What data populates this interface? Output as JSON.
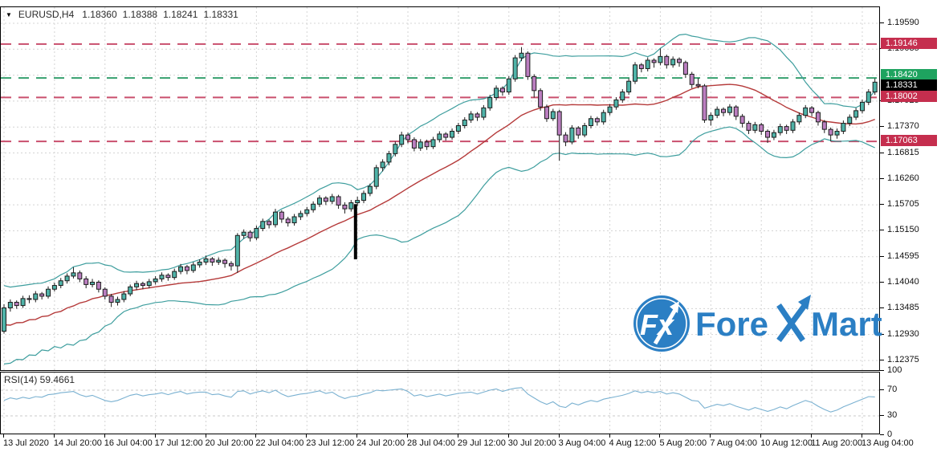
{
  "header": {
    "dropdown_icon": "▼",
    "symbol": "EURUSD,H4",
    "open": "1.18360",
    "high": "1.18388",
    "low": "1.18241",
    "close": "1.18331"
  },
  "rsi_label": "RSI(14) 59.4661",
  "logo": {
    "fx": "Fx",
    "fore": "Fore",
    "mart": "Mart"
  },
  "colors": {
    "bull": "#4fb3a8",
    "bear": "#bb7ec0",
    "candle_border": "#1c1c1c",
    "band": "#3e9e9e",
    "ma": "#b53a3a",
    "level_red": "#c94f6d",
    "badge_red": "#c52e4e",
    "level_green": "#36a06e",
    "badge_green": "#1ea35f",
    "badge_black": "#000000",
    "rsi_line": "#7ab1d1",
    "grid": "#d4d4d4",
    "logo_blue": "#2b7fc4",
    "annotation": "#000000"
  },
  "price_axis": {
    "labels": [
      {
        "text": "1.19590",
        "value": 1.1959
      },
      {
        "text": "1.19035",
        "value": 1.19035
      },
      {
        "text": "1.17925",
        "value": 1.17925
      },
      {
        "text": "1.17370",
        "value": 1.1737
      },
      {
        "text": "1.16815",
        "value": 1.16815
      },
      {
        "text": "1.16260",
        "value": 1.1626
      },
      {
        "text": "1.15705",
        "value": 1.15705
      },
      {
        "text": "1.15150",
        "value": 1.1515
      },
      {
        "text": "1.14595",
        "value": 1.14595
      },
      {
        "text": "1.14040",
        "value": 1.1404
      },
      {
        "text": "1.13485",
        "value": 1.13485
      },
      {
        "text": "1.12930",
        "value": 1.1293
      },
      {
        "text": "1.12375",
        "value": 1.12375
      }
    ],
    "grid_values": [
      1.1959,
      1.19035,
      1.1848,
      1.17925,
      1.1737,
      1.16815,
      1.1626,
      1.15705,
      1.1515,
      1.14595,
      1.1404,
      1.13485,
      1.1293,
      1.12375
    ],
    "badges": [
      {
        "text": "1.19146",
        "value": 1.19146,
        "type": "red",
        "dy": 0
      },
      {
        "text": "1.18420",
        "value": 1.1842,
        "type": "green",
        "dy": -3
      },
      {
        "text": "1.18331",
        "value": 1.18331,
        "type": "black",
        "dy": 5
      },
      {
        "text": "1.18002",
        "value": 1.18002,
        "type": "red",
        "dy": 0
      },
      {
        "text": "1.17063",
        "value": 1.17063,
        "type": "red",
        "dy": 0
      }
    ]
  },
  "rsi_axis": {
    "labels": [
      {
        "text": "100",
        "value": 100
      },
      {
        "text": "70",
        "value": 70
      },
      {
        "text": "30",
        "value": 30
      },
      {
        "text": "0",
        "value": 0
      }
    ],
    "dashed_levels": [
      70,
      30
    ]
  },
  "chart_data": {
    "type": "candlestick",
    "symbol": "EURUSD",
    "timeframe": "H4",
    "x_labels": [
      "13 Jul 2020",
      "14 Jul 20:00",
      "16 Jul 04:00",
      "17 Jul 12:00",
      "20 Jul 20:00",
      "22 Jul 04:00",
      "23 Jul 12:00",
      "24 Jul 20:00",
      "28 Jul 04:00",
      "29 Jul 12:00",
      "30 Jul 20:00",
      "3 Aug 04:00",
      "4 Aug 12:00",
      "5 Aug 20:00",
      "7 Aug 04:00",
      "10 Aug 12:00",
      "11 Aug 20:00",
      "13 Aug 04:00"
    ],
    "candles_per_label": 8,
    "y_range": [
      1.12375,
      1.1959
    ],
    "levels": [
      {
        "price": 1.19146,
        "style": "red"
      },
      {
        "price": 1.1842,
        "style": "green"
      },
      {
        "price": 1.18002,
        "style": "red"
      },
      {
        "price": 1.17063,
        "style": "red"
      }
    ],
    "current_price": 1.18331,
    "candles": [
      [
        1.13,
        1.1358,
        1.1295,
        1.135
      ],
      [
        1.135,
        1.1368,
        1.1342,
        1.1362
      ],
      [
        1.1362,
        1.1366,
        1.1348,
        1.1355
      ],
      [
        1.1355,
        1.1376,
        1.135,
        1.137
      ],
      [
        1.137,
        1.1377,
        1.136,
        1.1368
      ],
      [
        1.1368,
        1.1386,
        1.1362,
        1.138
      ],
      [
        1.138,
        1.1384,
        1.1368,
        1.1375
      ],
      [
        1.1375,
        1.1396,
        1.137,
        1.139
      ],
      [
        1.139,
        1.1404,
        1.1385,
        1.1398
      ],
      [
        1.1398,
        1.1414,
        1.1392,
        1.1408
      ],
      [
        1.1408,
        1.1424,
        1.1402,
        1.1418
      ],
      [
        1.1418,
        1.1437,
        1.1413,
        1.1425
      ],
      [
        1.1425,
        1.143,
        1.1405,
        1.1412
      ],
      [
        1.1412,
        1.1418,
        1.1392,
        1.14
      ],
      [
        1.14,
        1.1412,
        1.1394,
        1.1405
      ],
      [
        1.1405,
        1.1409,
        1.1383,
        1.139
      ],
      [
        1.139,
        1.1394,
        1.1368,
        1.1375
      ],
      [
        1.1375,
        1.138,
        1.1352,
        1.1362
      ],
      [
        1.1362,
        1.1374,
        1.1355,
        1.1368
      ],
      [
        1.1368,
        1.1386,
        1.1362,
        1.138
      ],
      [
        1.138,
        1.14,
        1.1375,
        1.1395
      ],
      [
        1.1395,
        1.1408,
        1.1388,
        1.1402
      ],
      [
        1.1402,
        1.1406,
        1.139,
        1.1398
      ],
      [
        1.1398,
        1.1412,
        1.1392,
        1.1406
      ],
      [
        1.1406,
        1.1418,
        1.14,
        1.1412
      ],
      [
        1.1412,
        1.1426,
        1.1406,
        1.142
      ],
      [
        1.142,
        1.1424,
        1.1408,
        1.1415
      ],
      [
        1.1415,
        1.1434,
        1.141,
        1.1428
      ],
      [
        1.1428,
        1.1444,
        1.1422,
        1.1438
      ],
      [
        1.1438,
        1.1442,
        1.1422,
        1.143
      ],
      [
        1.143,
        1.1448,
        1.1425,
        1.1442
      ],
      [
        1.1442,
        1.1454,
        1.1436,
        1.1448
      ],
      [
        1.1448,
        1.1462,
        1.1442,
        1.1455
      ],
      [
        1.1455,
        1.1459,
        1.144,
        1.1448
      ],
      [
        1.1448,
        1.1458,
        1.1442,
        1.1452
      ],
      [
        1.1452,
        1.1456,
        1.1436,
        1.1445
      ],
      [
        1.1445,
        1.145,
        1.143,
        1.144
      ],
      [
        1.144,
        1.151,
        1.1425,
        1.1505
      ],
      [
        1.1505,
        1.1518,
        1.1498,
        1.1512
      ],
      [
        1.1512,
        1.1516,
        1.1492,
        1.15
      ],
      [
        1.15,
        1.1526,
        1.1495,
        1.152
      ],
      [
        1.152,
        1.1541,
        1.1514,
        1.1535
      ],
      [
        1.1535,
        1.1539,
        1.152,
        1.1528
      ],
      [
        1.1528,
        1.1562,
        1.1522,
        1.1555
      ],
      [
        1.1555,
        1.1559,
        1.1532,
        1.154
      ],
      [
        1.154,
        1.1545,
        1.1524,
        1.1532
      ],
      [
        1.1532,
        1.1551,
        1.1526,
        1.1545
      ],
      [
        1.1545,
        1.1558,
        1.1538,
        1.1552
      ],
      [
        1.1552,
        1.1566,
        1.1546,
        1.156
      ],
      [
        1.156,
        1.1578,
        1.1554,
        1.1572
      ],
      [
        1.1572,
        1.1591,
        1.1566,
        1.1585
      ],
      [
        1.1585,
        1.1589,
        1.157,
        1.1578
      ],
      [
        1.1578,
        1.1594,
        1.1572,
        1.1588
      ],
      [
        1.1588,
        1.1592,
        1.1562,
        1.157
      ],
      [
        1.157,
        1.1576,
        1.1552,
        1.1562
      ],
      [
        1.1562,
        1.1581,
        1.1556,
        1.1575
      ],
      [
        1.1575,
        1.1588,
        1.1568,
        1.158
      ],
      [
        1.158,
        1.1601,
        1.1574,
        1.1595
      ],
      [
        1.1595,
        1.1616,
        1.1589,
        1.161
      ],
      [
        1.161,
        1.1656,
        1.1604,
        1.165
      ],
      [
        1.165,
        1.1668,
        1.1642,
        1.1662
      ],
      [
        1.1662,
        1.1686,
        1.1655,
        1.168
      ],
      [
        1.168,
        1.1706,
        1.1674,
        1.17
      ],
      [
        1.17,
        1.1727,
        1.1694,
        1.172
      ],
      [
        1.172,
        1.1725,
        1.1702,
        1.171
      ],
      [
        1.171,
        1.1715,
        1.1685,
        1.1692
      ],
      [
        1.1692,
        1.1711,
        1.1686,
        1.1705
      ],
      [
        1.1705,
        1.171,
        1.1688,
        1.1695
      ],
      [
        1.1695,
        1.1716,
        1.169,
        1.171
      ],
      [
        1.171,
        1.1728,
        1.1704,
        1.1722
      ],
      [
        1.1722,
        1.1726,
        1.1708,
        1.1715
      ],
      [
        1.1715,
        1.1734,
        1.171,
        1.1728
      ],
      [
        1.1728,
        1.1746,
        1.1722,
        1.174
      ],
      [
        1.174,
        1.1758,
        1.1734,
        1.1752
      ],
      [
        1.1752,
        1.1771,
        1.1746,
        1.1765
      ],
      [
        1.1765,
        1.1769,
        1.175,
        1.1758
      ],
      [
        1.1758,
        1.1784,
        1.1752,
        1.1778
      ],
      [
        1.1778,
        1.1806,
        1.1772,
        1.18
      ],
      [
        1.18,
        1.1826,
        1.1794,
        1.182
      ],
      [
        1.182,
        1.1824,
        1.1804,
        1.1812
      ],
      [
        1.1812,
        1.1846,
        1.1806,
        1.184
      ],
      [
        1.184,
        1.1891,
        1.1834,
        1.1885
      ],
      [
        1.1885,
        1.1908,
        1.1878,
        1.1895
      ],
      [
        1.1895,
        1.1899,
        1.1838,
        1.1845
      ],
      [
        1.1845,
        1.185,
        1.18,
        1.1815
      ],
      [
        1.1815,
        1.182,
        1.1772,
        1.178
      ],
      [
        1.178,
        1.1785,
        1.1748,
        1.1755
      ],
      [
        1.1755,
        1.1776,
        1.175,
        1.177
      ],
      [
        1.177,
        1.1774,
        1.1665,
        1.172
      ],
      [
        1.172,
        1.1726,
        1.1696,
        1.1705
      ],
      [
        1.1705,
        1.1741,
        1.17,
        1.1735
      ],
      [
        1.1735,
        1.1739,
        1.1712,
        1.172
      ],
      [
        1.172,
        1.1746,
        1.1715,
        1.174
      ],
      [
        1.174,
        1.1761,
        1.1734,
        1.1755
      ],
      [
        1.1755,
        1.1759,
        1.174,
        1.1748
      ],
      [
        1.1748,
        1.1774,
        1.1742,
        1.1768
      ],
      [
        1.1768,
        1.1786,
        1.1762,
        1.178
      ],
      [
        1.178,
        1.1801,
        1.1774,
        1.1795
      ],
      [
        1.1795,
        1.1818,
        1.1789,
        1.1812
      ],
      [
        1.1812,
        1.1841,
        1.1806,
        1.1835
      ],
      [
        1.1835,
        1.1876,
        1.1829,
        1.187
      ],
      [
        1.187,
        1.1874,
        1.1854,
        1.1862
      ],
      [
        1.1862,
        1.1886,
        1.1856,
        1.188
      ],
      [
        1.188,
        1.1884,
        1.1864,
        1.1875
      ],
      [
        1.1875,
        1.1905,
        1.1869,
        1.1888
      ],
      [
        1.1888,
        1.1892,
        1.1862,
        1.187
      ],
      [
        1.187,
        1.1888,
        1.1864,
        1.1882
      ],
      [
        1.1882,
        1.1886,
        1.1866,
        1.1875
      ],
      [
        1.1875,
        1.1879,
        1.1842,
        1.185
      ],
      [
        1.185,
        1.1855,
        1.182,
        1.1828
      ],
      [
        1.1828,
        1.1842,
        1.182,
        1.1825
      ],
      [
        1.1825,
        1.1829,
        1.1746,
        1.1752
      ],
      [
        1.1752,
        1.1768,
        1.174,
        1.1762
      ],
      [
        1.1762,
        1.1781,
        1.1756,
        1.1775
      ],
      [
        1.1775,
        1.1779,
        1.176,
        1.1768
      ],
      [
        1.1768,
        1.1786,
        1.1762,
        1.178
      ],
      [
        1.178,
        1.1784,
        1.1752,
        1.176
      ],
      [
        1.176,
        1.1765,
        1.1736,
        1.1745
      ],
      [
        1.1745,
        1.175,
        1.1722,
        1.173
      ],
      [
        1.173,
        1.1748,
        1.1724,
        1.1742
      ],
      [
        1.1742,
        1.1746,
        1.172,
        1.1728
      ],
      [
        1.1728,
        1.1732,
        1.1703,
        1.1715
      ],
      [
        1.1715,
        1.1731,
        1.1709,
        1.1725
      ],
      [
        1.1725,
        1.1744,
        1.1719,
        1.1738
      ],
      [
        1.1738,
        1.1742,
        1.1722,
        1.173
      ],
      [
        1.173,
        1.1754,
        1.1724,
        1.1748
      ],
      [
        1.1748,
        1.1768,
        1.1742,
        1.1762
      ],
      [
        1.1762,
        1.1784,
        1.1756,
        1.1778
      ],
      [
        1.1778,
        1.1782,
        1.176,
        1.1768
      ],
      [
        1.1768,
        1.1772,
        1.174,
        1.1748
      ],
      [
        1.1748,
        1.1752,
        1.1724,
        1.1732
      ],
      [
        1.1732,
        1.1736,
        1.1706,
        1.172
      ],
      [
        1.172,
        1.1734,
        1.1712,
        1.1728
      ],
      [
        1.1728,
        1.1751,
        1.1722,
        1.1745
      ],
      [
        1.1745,
        1.1764,
        1.1739,
        1.1758
      ],
      [
        1.1758,
        1.1778,
        1.1752,
        1.1772
      ],
      [
        1.1772,
        1.1796,
        1.1766,
        1.179
      ],
      [
        1.179,
        1.1818,
        1.1784,
        1.1812
      ],
      [
        1.1812,
        1.1841,
        1.1806,
        1.1833
      ]
    ],
    "band_seed": [
      1.138,
      1.1252,
      1.136,
      1.1248,
      1.1368,
      1.125,
      1.1362,
      1.1262,
      1.1352,
      1.127,
      1.1342,
      1.1282,
      1.1336,
      1.129,
      1.133,
      1.1296,
      1.1326,
      1.13,
      1.1322
    ],
    "indicators": {
      "bollinger": {
        "period": 20,
        "deviation": 2
      },
      "rsi": {
        "period": 14,
        "current": 59.4661,
        "values": [
          54,
          58,
          56,
          59,
          57,
          60,
          59,
          63,
          64,
          66,
          67,
          68,
          63,
          60,
          62,
          58,
          54,
          52,
          54,
          58,
          62,
          64,
          61,
          63,
          64,
          66,
          63,
          66,
          68,
          64,
          66,
          67,
          67,
          63,
          64,
          61,
          59,
          68,
          69,
          64,
          67,
          69,
          66,
          70,
          64,
          60,
          62,
          64,
          65,
          67,
          69,
          65,
          67,
          61,
          57,
          60,
          61,
          64,
          66,
          70,
          69,
          70,
          71,
          72,
          68,
          61,
          63,
          60,
          62,
          64,
          61,
          63,
          65,
          66,
          67,
          64,
          67,
          70,
          72,
          68,
          71,
          73,
          74,
          64,
          58,
          52,
          48,
          52,
          45,
          43,
          50,
          47,
          51,
          54,
          52,
          56,
          58,
          60,
          62,
          65,
          69,
          66,
          68,
          66,
          68,
          64,
          66,
          64,
          59,
          54,
          53,
          42,
          45,
          48,
          46,
          49,
          45,
          42,
          39,
          43,
          40,
          37,
          40,
          44,
          41,
          46,
          50,
          54,
          51,
          45,
          40,
          36,
          39,
          44,
          48,
          52,
          56,
          60,
          59.5
        ]
      }
    },
    "annotations": {
      "vertical_bar": {
        "index": 55.7,
        "top": 1.1572,
        "bottom": 1.1454
      }
    }
  }
}
